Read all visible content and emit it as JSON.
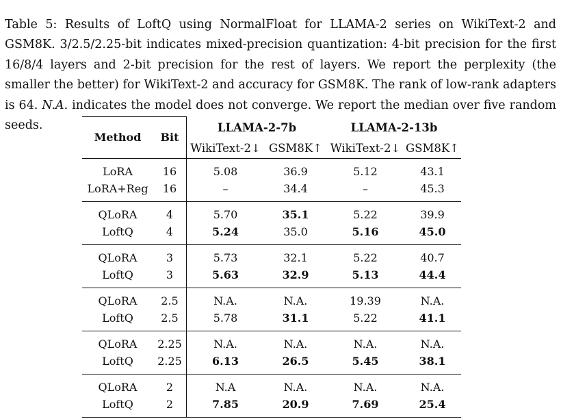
{
  "caption": {
    "label": "Table 5:",
    "text_before_na": " Results of LoftQ using NormalFloat for LLAMA-2 series on WikiText-2 and GSM8K. 3/2.5/2.25-bit indicates mixed-precision quantization: 4-bit precision for the first 16/8/4 layers and 2-bit precision for the rest of layers. We report the perplexity (the smaller the better) for WikiText-2 and accuracy for GSM8K. The rank of low-rank adapters is 64. ",
    "na_italic": "N.A.",
    "text_after_na": " indicates the model does not converge. We report the median over five random seeds."
  },
  "table": {
    "headers": {
      "method": "Method",
      "bit": "Bit",
      "group1": "LLAMA-2-7b",
      "group2": "LLAMA-2-13b",
      "g1_wikitext": "WikiText-2↓",
      "g1_gsm8k": "GSM8K↑",
      "g2_wikitext": "WikiText-2↓",
      "g2_gsm8k": "GSM8K↑"
    },
    "rows": [
      {
        "method": "LoRA",
        "bit": "16",
        "v": [
          "5.08",
          "36.9",
          "5.12",
          "43.1"
        ],
        "bold": [
          false,
          false,
          false,
          false
        ]
      },
      {
        "method": "LoRA+Reg",
        "bit": "16",
        "v": [
          "–",
          "34.4",
          "–",
          "45.3"
        ],
        "bold": [
          false,
          false,
          false,
          false
        ]
      },
      {
        "method": "QLoRA",
        "bit": "4",
        "v": [
          "5.70",
          "35.1",
          "5.22",
          "39.9"
        ],
        "bold": [
          false,
          true,
          false,
          false
        ]
      },
      {
        "method": "LoftQ",
        "bit": "4",
        "v": [
          "5.24",
          "35.0",
          "5.16",
          "45.0"
        ],
        "bold": [
          true,
          false,
          true,
          true
        ]
      },
      {
        "method": "QLoRA",
        "bit": "3",
        "v": [
          "5.73",
          "32.1",
          "5.22",
          "40.7"
        ],
        "bold": [
          false,
          false,
          false,
          false
        ]
      },
      {
        "method": "LoftQ",
        "bit": "3",
        "v": [
          "5.63",
          "32.9",
          "5.13",
          "44.4"
        ],
        "bold": [
          true,
          true,
          true,
          true
        ]
      },
      {
        "method": "QLoRA",
        "bit": "2.5",
        "v": [
          "N.A.",
          "N.A.",
          "19.39",
          "N.A."
        ],
        "bold": [
          false,
          false,
          false,
          false
        ]
      },
      {
        "method": "LoftQ",
        "bit": "2.5",
        "v": [
          "5.78",
          "31.1",
          "5.22",
          "41.1"
        ],
        "bold": [
          false,
          true,
          false,
          true
        ]
      },
      {
        "method": "QLoRA",
        "bit": "2.25",
        "v": [
          "N.A.",
          "N.A.",
          "N.A.",
          "N.A."
        ],
        "bold": [
          false,
          false,
          false,
          false
        ]
      },
      {
        "method": "LoftQ",
        "bit": "2.25",
        "v": [
          "6.13",
          "26.5",
          "5.45",
          "38.1"
        ],
        "bold": [
          true,
          true,
          true,
          true
        ]
      },
      {
        "method": "QLoRA",
        "bit": "2",
        "v": [
          "N.A",
          "N.A.",
          "N.A.",
          "N.A."
        ],
        "bold": [
          false,
          false,
          false,
          false
        ]
      },
      {
        "method": "LoftQ",
        "bit": "2",
        "v": [
          "7.85",
          "20.9",
          "7.69",
          "25.4"
        ],
        "bold": [
          true,
          true,
          true,
          true
        ]
      }
    ]
  }
}
